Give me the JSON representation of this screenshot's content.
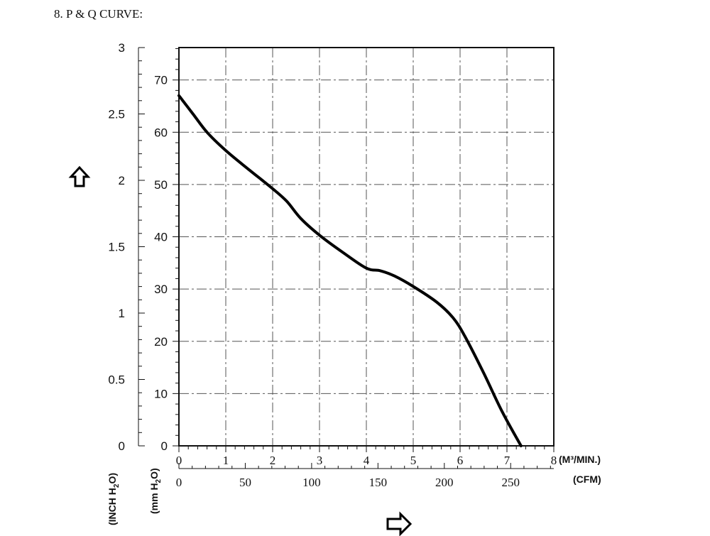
{
  "heading": "8.  P & Q CURVE:",
  "colors": {
    "curve": "#000000",
    "grid": "#555555",
    "axis": "#111111"
  },
  "icons": {
    "up_arrow": "up-arrow-icon",
    "right_arrow": "right-arrow-icon"
  },
  "chart_data": {
    "type": "line",
    "title": "",
    "grid": true,
    "axes": {
      "y_inch": {
        "label_main": "(INCH H",
        "label_sub": "2",
        "label_end": "O)",
        "range": [
          0,
          3
        ],
        "ticks": [
          "0",
          "0.5",
          "1",
          "1.5",
          "2",
          "2.5",
          "3"
        ]
      },
      "y_mm": {
        "label_main": "(mm H",
        "label_sub": "2",
        "label_end": "O)",
        "range": [
          0,
          76.2
        ],
        "ticks": [
          "0",
          "10",
          "20",
          "30",
          "40",
          "50",
          "60",
          "70"
        ]
      },
      "x_m3": {
        "label": "(M³/MIN.)",
        "range": [
          0,
          8
        ],
        "ticks": [
          "0",
          "1",
          "2",
          "3",
          "4",
          "5",
          "6",
          "7",
          "8"
        ]
      },
      "x_cfm": {
        "label": "(CFM)",
        "range": [
          0,
          282.5
        ],
        "ticks": [
          "0",
          "50",
          "100",
          "150",
          "200",
          "250"
        ]
      }
    },
    "series": [
      {
        "x_unit": "M³/MIN.",
        "y_unit": "mm H2O",
        "points": [
          [
            0,
            67.0
          ],
          [
            0.3,
            63.5
          ],
          [
            0.6,
            60.0
          ],
          [
            1.0,
            56.5
          ],
          [
            1.5,
            52.8
          ],
          [
            2.0,
            49.2
          ],
          [
            2.3,
            46.8
          ],
          [
            2.6,
            43.5
          ],
          [
            3.0,
            40.3
          ],
          [
            3.5,
            37.0
          ],
          [
            4.0,
            34.0
          ],
          [
            4.3,
            33.5
          ],
          [
            4.6,
            32.5
          ],
          [
            5.0,
            30.5
          ],
          [
            5.5,
            27.5
          ],
          [
            5.85,
            24.5
          ],
          [
            6.1,
            21.0
          ],
          [
            6.5,
            14.0
          ],
          [
            6.9,
            6.5
          ],
          [
            7.3,
            0.0
          ]
        ]
      }
    ]
  }
}
